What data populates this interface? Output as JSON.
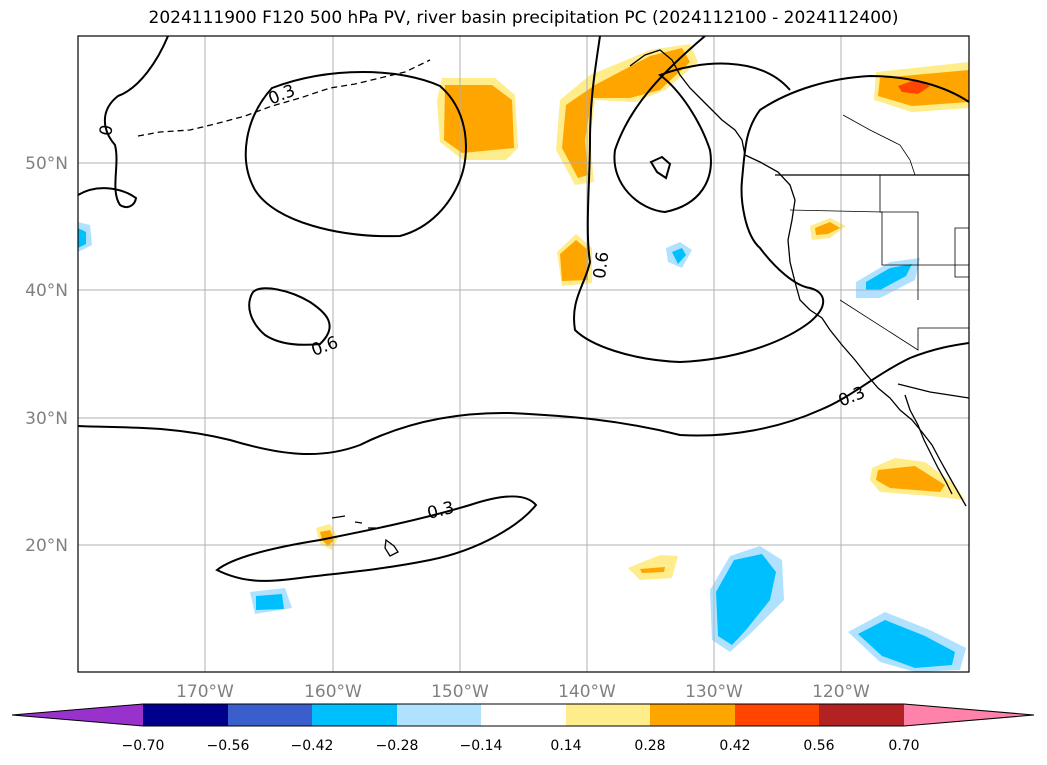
{
  "title": "2024111900 F120 500 hPa PV, river basin precipitation PC (2024112100 - 2024112400)",
  "lat_labels": [
    "50°N",
    "40°N",
    "30°N",
    "20°N"
  ],
  "lon_labels": [
    "170°W",
    "160°W",
    "150°W",
    "140°W",
    "130°W",
    "120°W"
  ],
  "contour_labels": [
    "0.3",
    "0",
    "0.6",
    "0.6",
    "0.3",
    "0.3"
  ],
  "colorbar": {
    "ticks": [
      "−0.70",
      "−0.56",
      "−0.42",
      "−0.28",
      "−0.14",
      "0.14",
      "0.28",
      "0.42",
      "0.56",
      "0.70"
    ],
    "colors": [
      "#9932cc",
      "#00008b",
      "#3a5fcd",
      "#00bfff",
      "#b0e2ff",
      "#ffffff",
      "#ffec8b",
      "#ffa500",
      "#ff4500",
      "#b22222",
      "#ff82ab"
    ]
  },
  "colors": {
    "grid": "#b0b0b0",
    "contour": "#000000",
    "label": "#808080"
  }
}
